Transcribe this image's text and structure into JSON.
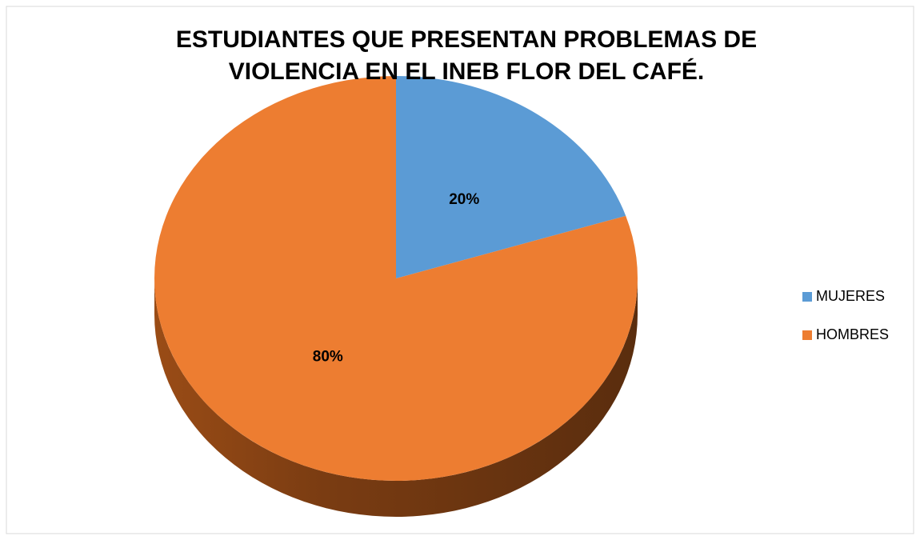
{
  "chart_data": {
    "type": "pie",
    "title": "ESTUDIANTES QUE PRESENTAN PROBLEMAS DE VIOLENCIA EN EL INEB FLOR DEL CAFÉ.",
    "categories": [
      "MUJERES",
      "HOMBRES"
    ],
    "values": [
      20,
      80
    ],
    "value_labels": [
      "20%",
      "80%"
    ],
    "colors": [
      "#5b9bd5",
      "#ed7d31"
    ],
    "legend": "right"
  }
}
